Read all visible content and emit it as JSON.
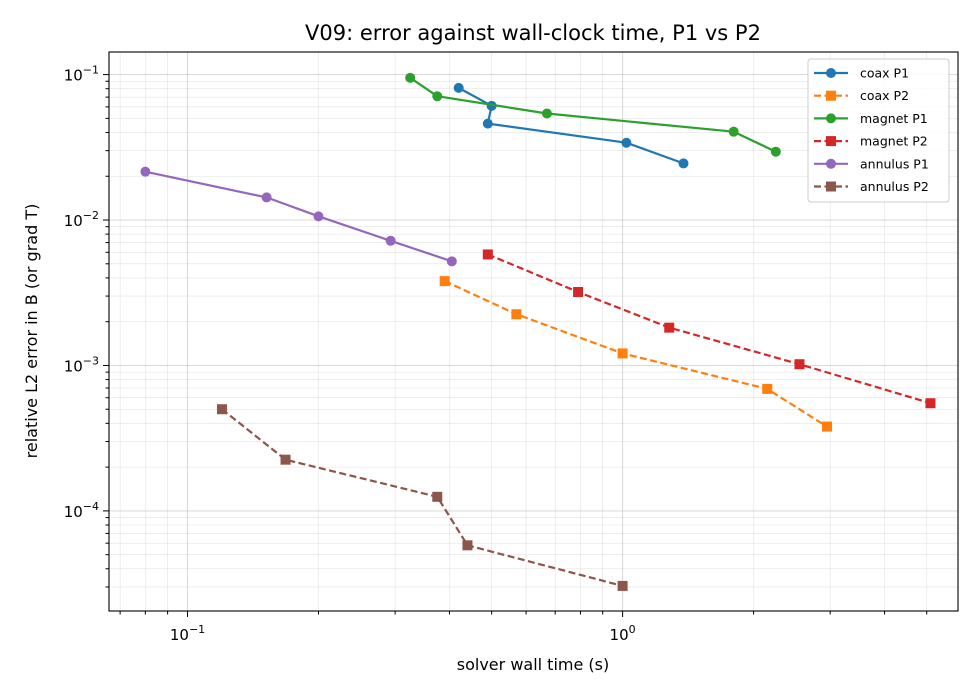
{
  "chart_data": {
    "type": "line",
    "title": "V09: error against wall-clock time, P1 vs P2",
    "xlabel": "solver wall time (s)",
    "ylabel": "relative L2 error in B (or grad T)",
    "x_scale": "log",
    "y_scale": "log",
    "xlim": [
      0.066,
      5.9
    ],
    "ylim": [
      2.05e-05,
      0.143
    ],
    "grid": true,
    "legend_position": "top-right",
    "x_ticks": [
      {
        "value": 0.1,
        "base": "10",
        "exp": "−1"
      },
      {
        "value": 1.0,
        "base": "10",
        "exp": "0"
      }
    ],
    "y_ticks": [
      {
        "value": 0.1,
        "base": "10",
        "exp": "−1"
      },
      {
        "value": 0.01,
        "base": "10",
        "exp": "−2"
      },
      {
        "value": 0.001,
        "base": "10",
        "exp": "−3"
      },
      {
        "value": 0.0001,
        "base": "10",
        "exp": "−4"
      }
    ],
    "series": [
      {
        "name": "coax P1",
        "color": "#1f77b4",
        "marker": "circle",
        "dash": false,
        "x": [
          0.42,
          0.5,
          0.49,
          1.02,
          1.38
        ],
        "y": [
          0.081,
          0.061,
          0.046,
          0.034,
          0.0245
        ]
      },
      {
        "name": "coax P2",
        "color": "#ff7f0e",
        "marker": "square",
        "dash": true,
        "x": [
          0.39,
          0.57,
          1.0,
          2.15,
          2.95
        ],
        "y": [
          0.0038,
          0.00225,
          0.00121,
          0.00069,
          0.00038
        ]
      },
      {
        "name": "magnet P1",
        "color": "#2ca02c",
        "marker": "circle",
        "dash": false,
        "x": [
          0.325,
          0.375,
          0.67,
          1.8,
          2.25
        ],
        "y": [
          0.095,
          0.071,
          0.054,
          0.0405,
          0.0295
        ]
      },
      {
        "name": "magnet P2",
        "color": "#d62728",
        "marker": "square",
        "dash": true,
        "x": [
          0.49,
          0.79,
          1.28,
          2.55,
          5.1
        ],
        "y": [
          0.0058,
          0.0032,
          0.00182,
          0.00102,
          0.00055
        ]
      },
      {
        "name": "annulus P1",
        "color": "#9467bd",
        "marker": "circle",
        "dash": false,
        "x": [
          0.08,
          0.152,
          0.2,
          0.293,
          0.405
        ],
        "y": [
          0.0215,
          0.0143,
          0.0106,
          0.0072,
          0.0052
        ]
      },
      {
        "name": "annulus P2",
        "color": "#8c564b",
        "marker": "square",
        "dash": true,
        "x": [
          0.12,
          0.168,
          0.375,
          0.44,
          1.0
        ],
        "y": [
          0.0005,
          0.000225,
          0.000125,
          5.8e-05,
          3.05e-05
        ]
      }
    ]
  }
}
